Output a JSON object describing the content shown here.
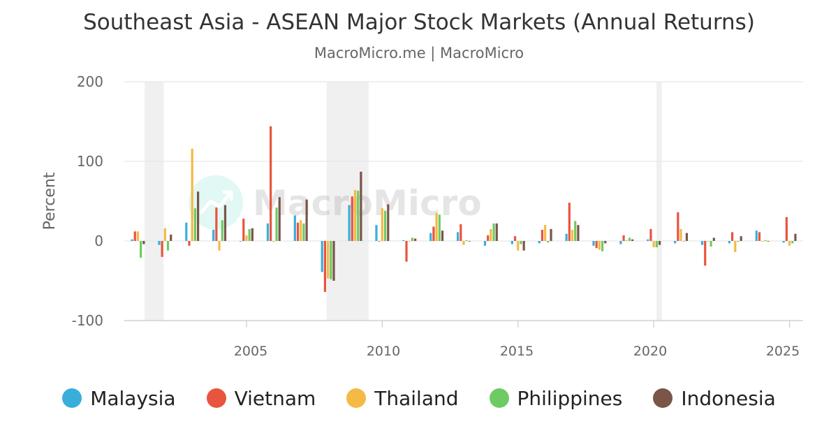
{
  "header": {
    "title": "Southeast Asia - ASEAN Major Stock Markets (Annual Returns)",
    "subtitle": "MacroMicro.me | MacroMicro"
  },
  "watermark": {
    "text": "MacroMicro",
    "icon": "chart-trend-icon"
  },
  "legend_position": "bottom",
  "chart_data": {
    "type": "bar",
    "ylabel": "Percent",
    "xlabel": "",
    "ylim": [
      -100,
      200
    ],
    "xlim": [
      2000.5,
      2025.5
    ],
    "y_ticks": [
      "200",
      "100",
      "0",
      "-100"
    ],
    "x_ticks": [
      "2005",
      "2010",
      "2015",
      "2020",
      "2025"
    ],
    "grid": true,
    "recession_shading": [
      [
        2001.25,
        2001.95
      ],
      [
        2007.95,
        2009.5
      ],
      [
        2020.1,
        2020.3
      ]
    ],
    "categories": [
      2001,
      2002,
      2003,
      2004,
      2005,
      2006,
      2007,
      2008,
      2009,
      2010,
      2011,
      2012,
      2013,
      2014,
      2015,
      2016,
      2017,
      2018,
      2019,
      2020,
      2021,
      2022,
      2023,
      2024,
      2025
    ],
    "series": [
      {
        "name": "Malaysia",
        "color": "#3aaedb",
        "values": [
          2,
          -5,
          23,
          14,
          0,
          22,
          32,
          -39,
          45,
          20,
          1,
          10,
          11,
          -6,
          -4,
          -3,
          9,
          -6,
          -4,
          2,
          -3,
          -5,
          -3,
          13,
          -2
        ]
      },
      {
        "name": "Vietnam",
        "color": "#e8543d",
        "values": [
          12,
          -20,
          -6,
          42,
          28,
          144,
          23,
          -64,
          56,
          0,
          -26,
          18,
          21,
          7,
          6,
          14,
          48,
          -9,
          7,
          15,
          36,
          -31,
          11,
          11,
          30
        ]
      },
      {
        "name": "Thailand",
        "color": "#f5b945",
        "values": [
          12,
          16,
          116,
          -12,
          7,
          -1,
          26,
          -47,
          64,
          41,
          0,
          35,
          -5,
          15,
          -12,
          20,
          14,
          -11,
          1,
          -8,
          15,
          0,
          -14,
          0,
          -6
        ]
      },
      {
        "name": "Philippines",
        "color": "#6ecb63",
        "values": [
          -21,
          -12,
          41,
          26,
          15,
          42,
          22,
          -48,
          63,
          38,
          4,
          33,
          1,
          22,
          -4,
          -2,
          25,
          -13,
          4,
          -8,
          0,
          -7,
          -1,
          1,
          -3
        ]
      },
      {
        "name": "Indonesia",
        "color": "#7a5548",
        "values": [
          -4,
          8,
          62,
          45,
          16,
          55,
          52,
          -50,
          87,
          46,
          3,
          13,
          0,
          22,
          -12,
          15,
          20,
          -3,
          2,
          -5,
          10,
          4,
          6,
          0,
          9
        ]
      }
    ]
  }
}
